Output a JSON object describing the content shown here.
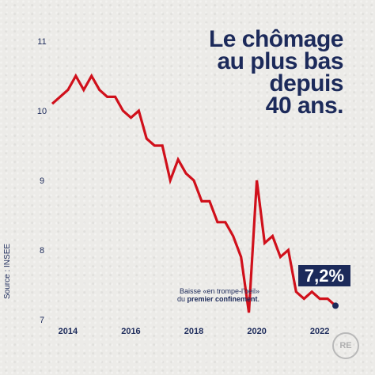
{
  "title_lines": [
    "Le chômage",
    "au plus bas",
    "depuis",
    "40 ans."
  ],
  "badge": "7,2%",
  "annotation": {
    "pre": "Baisse «en trompe-l’oeil» du ",
    "bold": "premier confinement",
    "post": "."
  },
  "source": "Source : INSEE",
  "logo_text": "RE",
  "colors": {
    "line": "#d0101b",
    "navy": "#1c2a5a",
    "background": "#ecebe8"
  },
  "chart_data": {
    "type": "line",
    "title": "Le chômage au plus bas depuis 40 ans.",
    "xlabel": "",
    "ylabel": "",
    "xlim": [
      2013.5,
      2022.7
    ],
    "ylim": [
      7,
      11
    ],
    "x_ticks": [
      2014,
      2016,
      2018,
      2020,
      2022
    ],
    "y_ticks": [
      7,
      8,
      9,
      10,
      11
    ],
    "grid": false,
    "series": [
      {
        "name": "",
        "x": [
          2013.5,
          2013.75,
          2014.0,
          2014.25,
          2014.5,
          2014.75,
          2015.0,
          2015.25,
          2015.5,
          2015.75,
          2016.0,
          2016.25,
          2016.5,
          2016.75,
          2017.0,
          2017.25,
          2017.5,
          2017.75,
          2018.0,
          2018.25,
          2018.5,
          2018.75,
          2019.0,
          2019.25,
          2019.5,
          2019.75,
          2020.0,
          2020.25,
          2020.5,
          2020.75,
          2021.0,
          2021.25,
          2021.5,
          2021.75,
          2022.0,
          2022.25,
          2022.5
        ],
        "values": [
          10.1,
          10.2,
          10.3,
          10.5,
          10.3,
          10.5,
          10.3,
          10.2,
          10.2,
          10.0,
          9.9,
          10.0,
          9.6,
          9.5,
          9.5,
          9.0,
          9.3,
          9.1,
          9.0,
          8.7,
          8.7,
          8.4,
          8.4,
          8.2,
          7.9,
          7.1,
          9.0,
          8.1,
          8.2,
          7.9,
          8.0,
          7.4,
          7.3,
          7.4,
          7.3,
          7.3,
          7.2
        ]
      }
    ],
    "highlight_label": "7,2%"
  }
}
